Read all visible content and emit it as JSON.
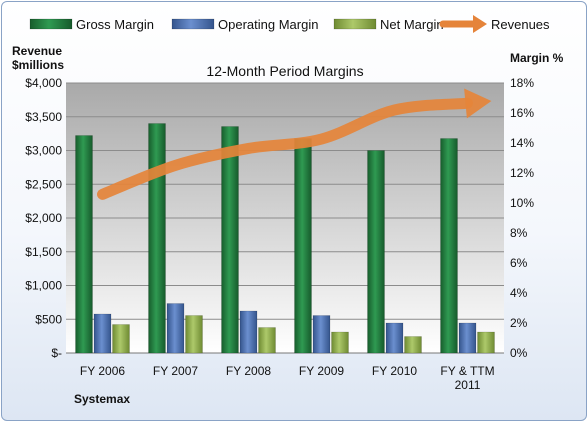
{
  "chart_data": {
    "type": "bar",
    "title": "12-Month Period Margins",
    "company": "Systemax",
    "y_left_label": [
      "Revenue",
      "$millions"
    ],
    "y_right_label": "Margin %",
    "y_left_ticks": [
      "$-",
      "$500",
      "$1,000",
      "$1,500",
      "$2,000",
      "$2,500",
      "$3,000",
      "$3,500",
      "$4,000"
    ],
    "y_left_range": [
      0,
      4000
    ],
    "y_right_ticks": [
      "0%",
      "2%",
      "4%",
      "6%",
      "8%",
      "10%",
      "12%",
      "14%",
      "16%",
      "18%"
    ],
    "y_right_range": [
      0,
      18
    ],
    "categories": [
      [
        "FY 2006"
      ],
      [
        "FY 2007"
      ],
      [
        "FY 2008"
      ],
      [
        "FY 2009"
      ],
      [
        "FY 2010"
      ],
      [
        "FY & TTM",
        "2011"
      ]
    ],
    "series": [
      {
        "name": "Gross Margin",
        "axis": "right",
        "color": "#1f7a3c",
        "values": [
          14.5,
          15.3,
          15.1,
          14.3,
          13.5,
          14.3
        ]
      },
      {
        "name": "Operating Margin",
        "axis": "right",
        "color": "#4a6fb0",
        "values": [
          2.6,
          3.3,
          2.8,
          2.5,
          2.0,
          2.0
        ]
      },
      {
        "name": "Net Margin",
        "axis": "right",
        "color": "#8fae4a",
        "values": [
          1.9,
          2.5,
          1.7,
          1.4,
          1.1,
          1.4
        ]
      },
      {
        "name": "Revenues",
        "axis": "left",
        "type": "line",
        "color": "#e5843a",
        "values": [
          2350,
          2780,
          3030,
          3170,
          3600,
          3700
        ]
      }
    ],
    "grid": true,
    "legend_position": "top"
  }
}
